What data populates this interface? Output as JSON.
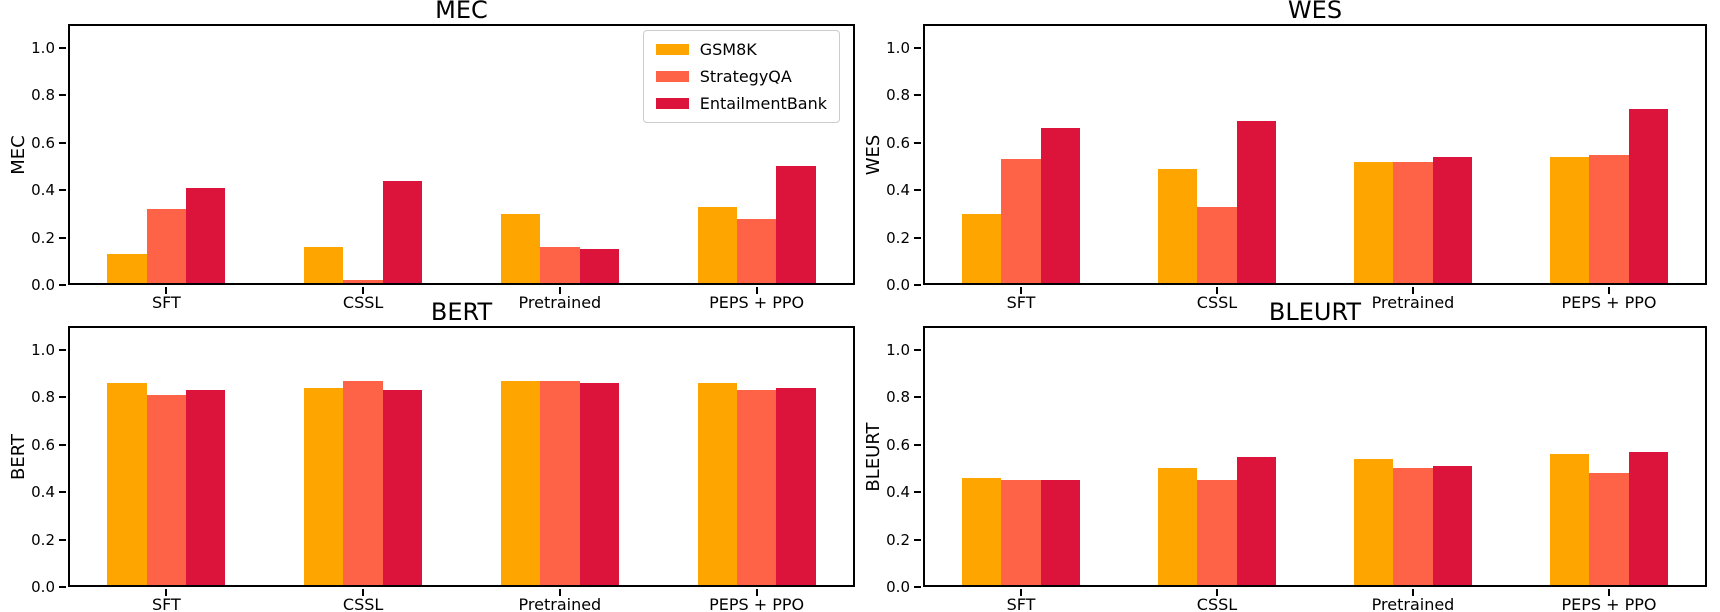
{
  "figure": {
    "background": "#ffffff",
    "text_color": "#000000",
    "legend_border_color": "#cccccc"
  },
  "chart_data": [
    {
      "type": "bar",
      "title": "MEC",
      "ylabel": "MEC",
      "xlabel": "",
      "categories": [
        "SFT",
        "CSSL",
        "Pretrained",
        "PEPS + PPO"
      ],
      "series": [
        {
          "name": "GSM8K",
          "color": "#FFA500",
          "values": [
            0.13,
            0.16,
            0.3,
            0.33
          ]
        },
        {
          "name": "StrategyQA",
          "color": "#FF6347",
          "values": [
            0.32,
            0.02,
            0.16,
            0.28
          ]
        },
        {
          "name": "EntailmentBank",
          "color": "#DC143C",
          "values": [
            0.41,
            0.44,
            0.15,
            0.5
          ]
        }
      ],
      "ylim": [
        0,
        1.1
      ],
      "yticks": [
        "0.0",
        "0.2",
        "0.4",
        "0.6",
        "0.8",
        "1.0"
      ],
      "grid": false,
      "legend": true,
      "legend_position": "upper right"
    },
    {
      "type": "bar",
      "title": "WES",
      "ylabel": "WES",
      "xlabel": "",
      "categories": [
        "SFT",
        "CSSL",
        "Pretrained",
        "PEPS + PPO"
      ],
      "series": [
        {
          "name": "GSM8K",
          "color": "#FFA500",
          "values": [
            0.3,
            0.49,
            0.52,
            0.54
          ]
        },
        {
          "name": "StrategyQA",
          "color": "#FF6347",
          "values": [
            0.53,
            0.33,
            0.52,
            0.55
          ]
        },
        {
          "name": "EntailmentBank",
          "color": "#DC143C",
          "values": [
            0.66,
            0.69,
            0.54,
            0.74
          ]
        }
      ],
      "ylim": [
        0,
        1.1
      ],
      "yticks": [
        "0.0",
        "0.2",
        "0.4",
        "0.6",
        "0.8",
        "1.0"
      ],
      "grid": false,
      "legend": false
    },
    {
      "type": "bar",
      "title": "BERT",
      "ylabel": "BERT",
      "xlabel": "",
      "categories": [
        "SFT",
        "CSSL",
        "Pretrained",
        "PEPS + PPO"
      ],
      "series": [
        {
          "name": "GSM8K",
          "color": "#FFA500",
          "values": [
            0.86,
            0.84,
            0.87,
            0.86
          ]
        },
        {
          "name": "StrategyQA",
          "color": "#FF6347",
          "values": [
            0.81,
            0.87,
            0.87,
            0.83
          ]
        },
        {
          "name": "EntailmentBank",
          "color": "#DC143C",
          "values": [
            0.83,
            0.83,
            0.86,
            0.84
          ]
        }
      ],
      "ylim": [
        0,
        1.1
      ],
      "yticks": [
        "0.0",
        "0.2",
        "0.4",
        "0.6",
        "0.8",
        "1.0"
      ],
      "grid": false,
      "legend": false
    },
    {
      "type": "bar",
      "title": "BLEURT",
      "ylabel": "BLEURT",
      "xlabel": "",
      "categories": [
        "SFT",
        "CSSL",
        "Pretrained",
        "PEPS + PPO"
      ],
      "series": [
        {
          "name": "GSM8K",
          "color": "#FFA500",
          "values": [
            0.46,
            0.5,
            0.54,
            0.56
          ]
        },
        {
          "name": "StrategyQA",
          "color": "#FF6347",
          "values": [
            0.45,
            0.45,
            0.5,
            0.48
          ]
        },
        {
          "name": "EntailmentBank",
          "color": "#DC143C",
          "values": [
            0.45,
            0.55,
            0.51,
            0.57
          ]
        }
      ],
      "ylim": [
        0,
        1.1
      ],
      "yticks": [
        "0.0",
        "0.2",
        "0.4",
        "0.6",
        "0.8",
        "1.0"
      ],
      "grid": false,
      "legend": false
    }
  ]
}
